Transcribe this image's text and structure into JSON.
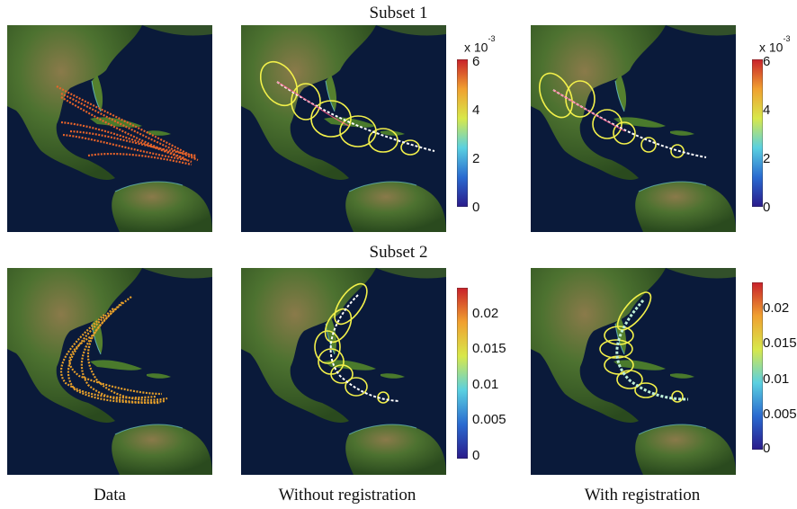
{
  "row_titles": [
    "Subset 1",
    "Subset 2"
  ],
  "col_titles": [
    "Data",
    "Without registration",
    "With registration"
  ],
  "colorbars": {
    "subset1": {
      "multiplier_base": "x 10",
      "multiplier_exp": "-3",
      "ticks": [
        "6",
        "4",
        "2",
        "0"
      ]
    },
    "subset2": {
      "ticks": [
        "0.02",
        "0.015",
        "0.01",
        "0.005",
        "0"
      ]
    }
  },
  "colors": {
    "track": "#e8642a",
    "ellipse": "#f2f04a",
    "mean": "#ffffff",
    "ocean": "#0a1230",
    "land": "#3f6a2a"
  }
}
